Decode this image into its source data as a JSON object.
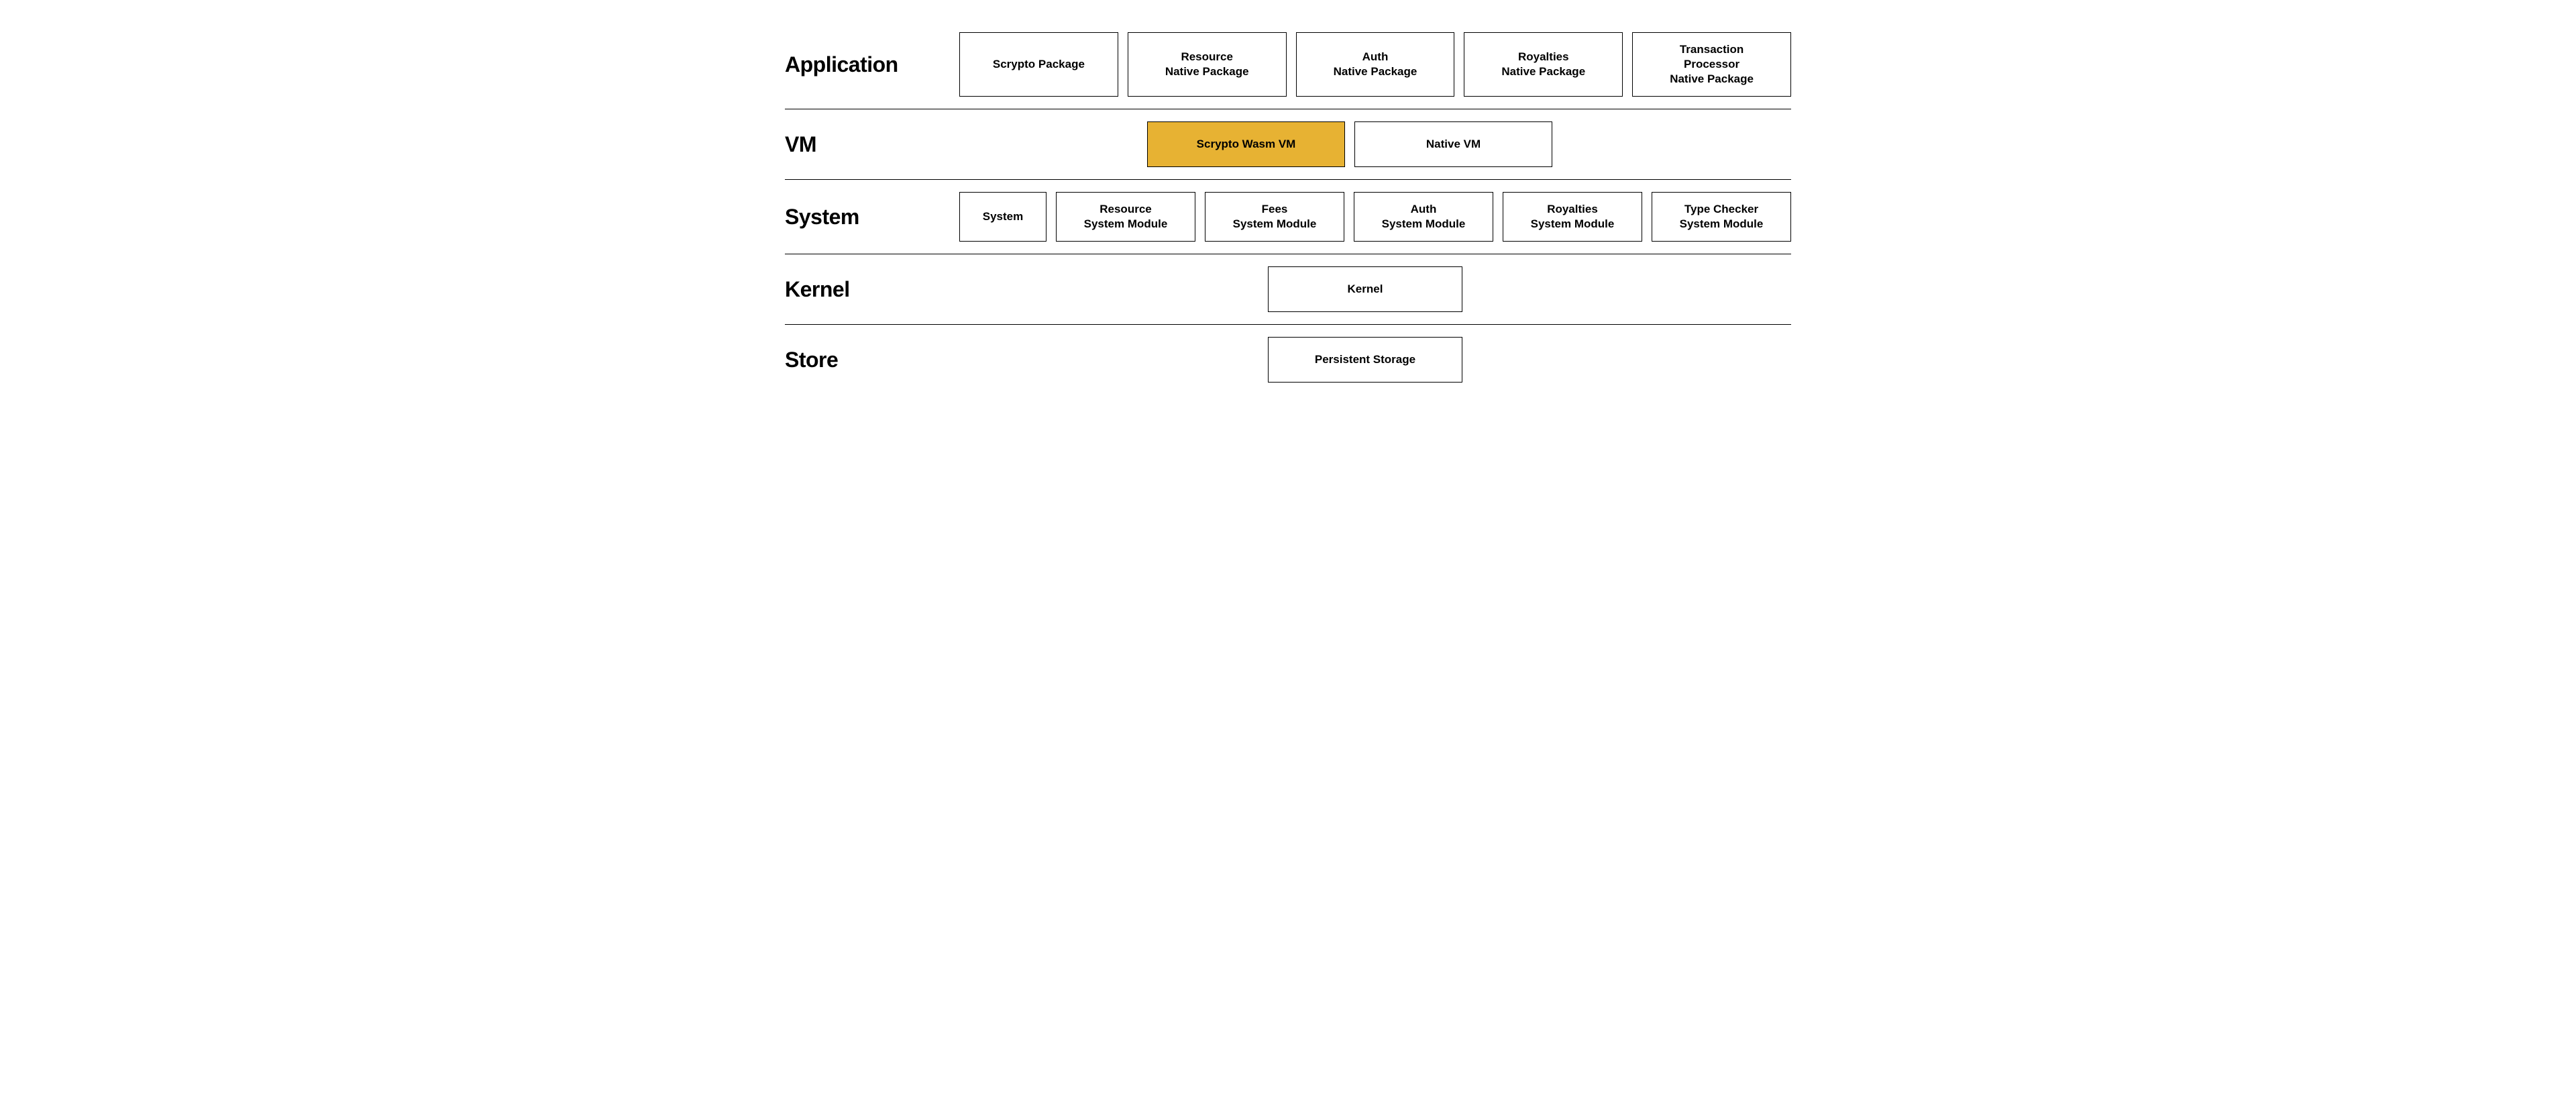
{
  "diagram": {
    "type": "layered-architecture",
    "background_color": "#ffffff",
    "border_color": "#000000",
    "box_border_color": "#000000",
    "box_background_color": "#ffffff",
    "highlight_color": "#e7b233",
    "text_color": "#000000",
    "label_fontsize": 32,
    "label_fontweight": 800,
    "box_fontsize": 17,
    "box_fontweight": 700,
    "layers": [
      {
        "name": "Application",
        "boxes": [
          {
            "label": "Scrypto Package",
            "highlighted": false
          },
          {
            "label": "Resource\nNative Package",
            "highlighted": false
          },
          {
            "label": "Auth\nNative Package",
            "highlighted": false
          },
          {
            "label": "Royalties\nNative Package",
            "highlighted": false
          },
          {
            "label": "Transaction\nProcessor\nNative Package",
            "highlighted": false
          }
        ]
      },
      {
        "name": "VM",
        "boxes": [
          {
            "label": "Scrypto Wasm VM",
            "highlighted": true
          },
          {
            "label": "Native VM",
            "highlighted": false
          }
        ]
      },
      {
        "name": "System",
        "boxes": [
          {
            "label": "System",
            "highlighted": false,
            "small": true
          },
          {
            "label": "Resource\nSystem Module",
            "highlighted": false
          },
          {
            "label": "Fees\nSystem Module",
            "highlighted": false
          },
          {
            "label": "Auth\nSystem Module",
            "highlighted": false
          },
          {
            "label": "Royalties\nSystem Module",
            "highlighted": false
          },
          {
            "label": "Type Checker\nSystem Module",
            "highlighted": false
          }
        ]
      },
      {
        "name": "Kernel",
        "boxes": [
          {
            "label": "Kernel",
            "highlighted": false
          }
        ]
      },
      {
        "name": "Store",
        "boxes": [
          {
            "label": "Persistent Storage",
            "highlighted": false
          }
        ]
      }
    ]
  }
}
